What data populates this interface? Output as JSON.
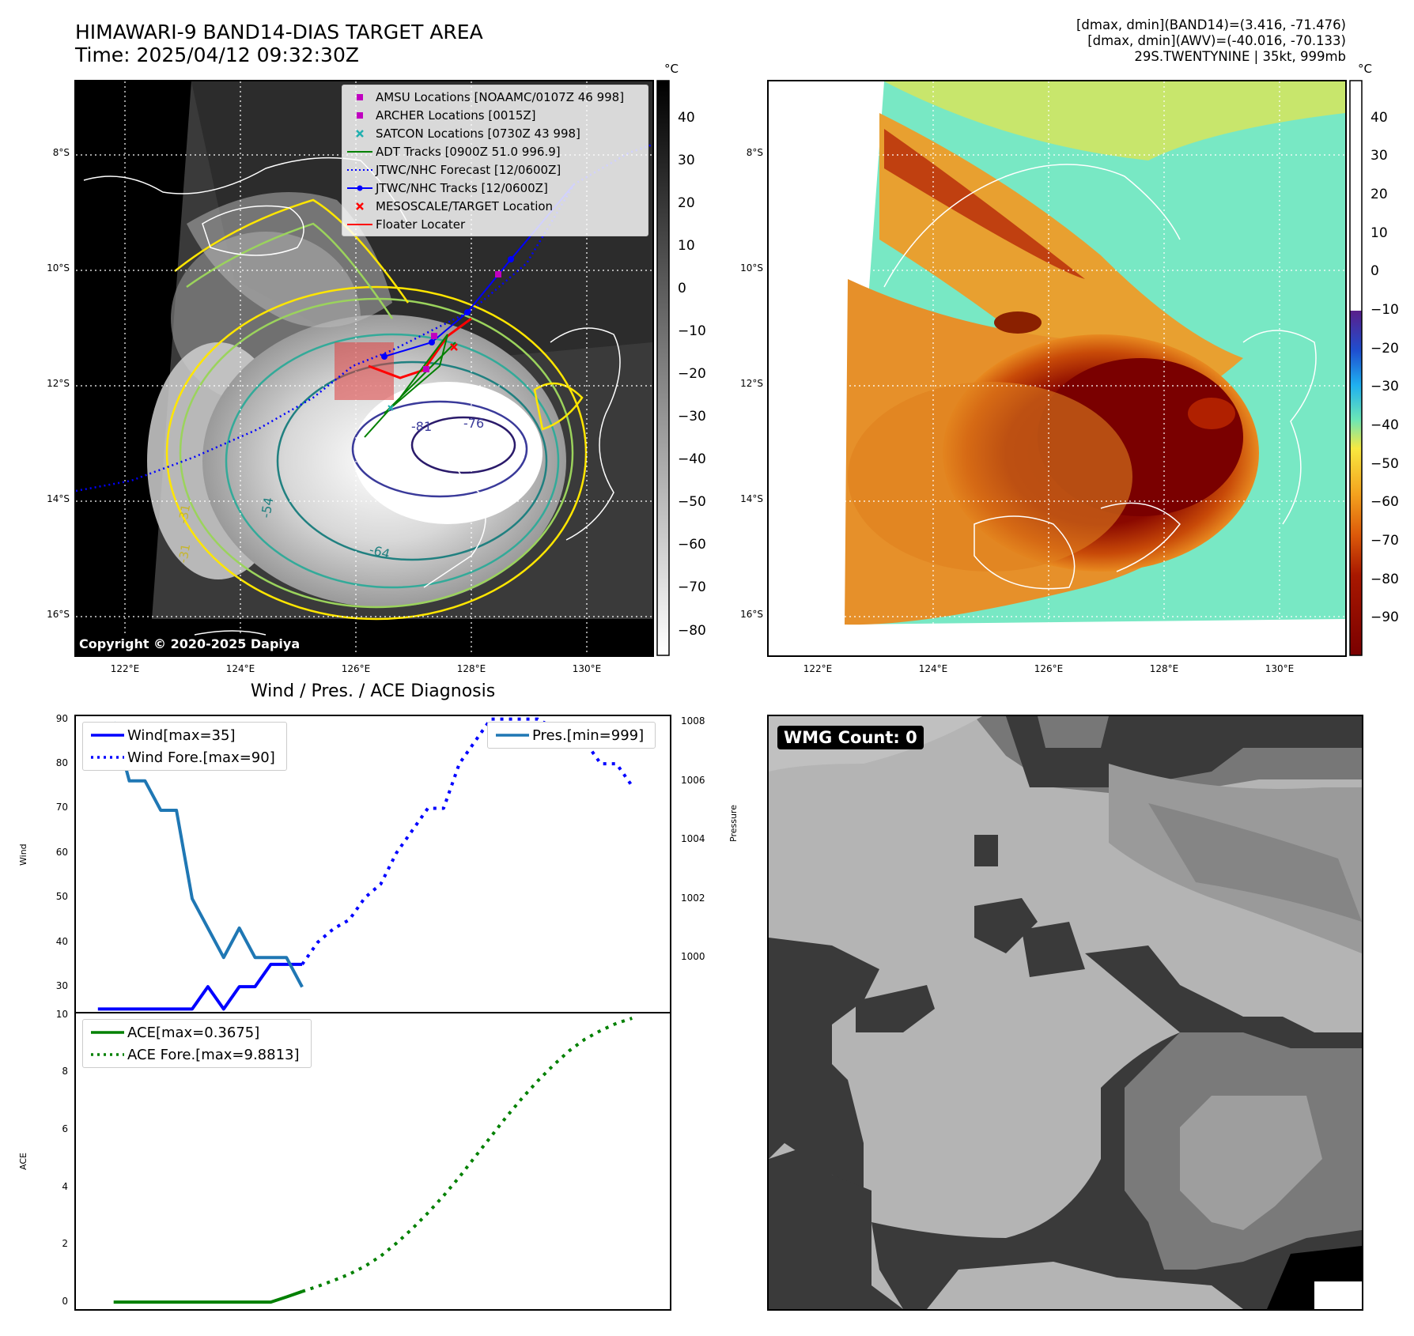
{
  "header": {
    "title_line1": "HIMAWARI-9 BAND14-DIAS TARGET AREA",
    "title_line2": "Time: 2025/04/12 09:32:30Z",
    "right_line1": "[dmax, dmin](BAND14)=(3.416, -71.476)",
    "right_line2": "[dmax, dmin](AWV)=(-40.016, -70.133)",
    "right_line3": "29S.TWENTYNINE | 35kt, 999mb"
  },
  "map": {
    "lat_labels": [
      "8°S",
      "10°S",
      "12°S",
      "14°S",
      "16°S"
    ],
    "lon_labels": [
      "122°E",
      "124°E",
      "126°E",
      "128°E",
      "130°E"
    ],
    "copyright": "Copyright © 2020-2025 Dapiya",
    "contour_labels": [
      "-81",
      "-76",
      "-54",
      "-64",
      "-31",
      "-31"
    ],
    "legend": [
      {
        "label": "AMSU Locations [NOAAMC/0107Z 46 998]",
        "color": "#c000c0",
        "symbol": "square"
      },
      {
        "label": "ARCHER Locations [0015Z]",
        "color": "#c000c0",
        "symbol": "square"
      },
      {
        "label": "SATCON Locations [0730Z 43 998]",
        "color": "#20b0b0",
        "symbol": "x"
      },
      {
        "label": "ADT Tracks [0900Z 51.0 996.9]",
        "color": "#008000",
        "symbol": "line"
      },
      {
        "label": "JTWC/NHC Forecast [12/0600Z]",
        "color": "#0000ff",
        "symbol": "dotted"
      },
      {
        "label": "JTWC/NHC Tracks [12/0600Z]",
        "color": "#0000ff",
        "symbol": "line-dot"
      },
      {
        "label": "MESOSCALE/TARGET Location",
        "color": "#ff0000",
        "symbol": "x"
      },
      {
        "label": "Floater Locater",
        "color": "#ff0000",
        "symbol": "line"
      }
    ]
  },
  "colorbar_left": {
    "unit": "°C",
    "ticks": [
      "40",
      "30",
      "20",
      "10",
      "0",
      "−10",
      "−20",
      "−30",
      "−40",
      "−50",
      "−60",
      "−70",
      "−80"
    ]
  },
  "colorbar_right": {
    "unit": "°C",
    "ticks": [
      "40",
      "30",
      "20",
      "10",
      "0",
      "−10",
      "−20",
      "−30",
      "−40",
      "−50",
      "−60",
      "−70",
      "−80",
      "−90"
    ]
  },
  "diag": {
    "title": "Wind / Pres. / ACE Diagnosis"
  },
  "wmg": {
    "label": "WMG Count: 0"
  },
  "chart_data": [
    {
      "type": "line",
      "ylabel": "Wind",
      "ylabel_right": "Pressure",
      "ylim": [
        24,
        91
      ],
      "ylim_right": [
        998.1,
        1008.25
      ],
      "yticks": [
        30,
        40,
        50,
        60,
        70,
        80,
        90
      ],
      "yticks_right": [
        1000,
        1002,
        1004,
        1006,
        1008
      ],
      "series": [
        {
          "name": "Wind[max=35]",
          "axis": "left",
          "color": "#0000ff",
          "style": "solid",
          "x": [
            0,
            1,
            2,
            3,
            4,
            5,
            6,
            7,
            8,
            9,
            10,
            11,
            12,
            13
          ],
          "values": [
            25,
            25,
            25,
            25,
            25,
            25,
            25,
            30,
            25,
            30,
            30,
            35,
            35,
            35
          ]
        },
        {
          "name": "Wind Fore.[max=90]",
          "axis": "left",
          "color": "#0000ff",
          "style": "dotted",
          "x": [
            13,
            14,
            15,
            16,
            17,
            18,
            19,
            20,
            21,
            22,
            23,
            24,
            25,
            26,
            27,
            28,
            29,
            30,
            31,
            32,
            33,
            34
          ],
          "values": [
            35,
            40,
            43,
            45,
            50,
            53,
            60,
            65,
            70,
            70,
            80,
            85,
            90,
            90,
            90,
            90,
            88,
            85,
            85,
            80,
            80,
            75
          ]
        },
        {
          "name": "Pres.[min=999]",
          "axis": "right",
          "color": "#1f77b4",
          "style": "solid",
          "x": [
            1,
            2,
            3,
            4,
            5,
            6,
            7,
            8,
            9,
            10,
            11,
            12,
            13
          ],
          "values": [
            1008,
            1006,
            1006,
            1005,
            1005,
            1002,
            1001,
            1000,
            1001,
            1000,
            1000,
            1000,
            999
          ]
        }
      ]
    },
    {
      "type": "line",
      "ylabel": "ACE",
      "ylim": [
        -0.3,
        10.1
      ],
      "yticks": [
        0,
        2,
        4,
        6,
        8,
        10
      ],
      "series": [
        {
          "name": "ACE[max=0.3675]",
          "color": "#008000",
          "style": "solid",
          "x": [
            1,
            2,
            3,
            4,
            5,
            6,
            7,
            8,
            9,
            10,
            11,
            12,
            13
          ],
          "values": [
            0,
            0,
            0,
            0,
            0,
            0,
            0,
            0,
            0,
            0,
            0,
            0.18,
            0.3675
          ]
        },
        {
          "name": "ACE Fore.[max=9.8813]",
          "color": "#008000",
          "style": "dotted",
          "x": [
            13,
            14,
            15,
            16,
            17,
            18,
            19,
            20,
            21,
            22,
            23,
            24,
            25,
            26,
            27,
            28,
            29,
            30,
            31,
            32,
            33,
            34
          ],
          "values": [
            0.3675,
            0.55,
            0.75,
            0.97,
            1.25,
            1.6,
            2.05,
            2.55,
            3.1,
            3.7,
            4.35,
            5.05,
            5.75,
            6.45,
            7.1,
            7.7,
            8.25,
            8.75,
            9.15,
            9.45,
            9.7,
            9.88
          ]
        }
      ]
    }
  ]
}
